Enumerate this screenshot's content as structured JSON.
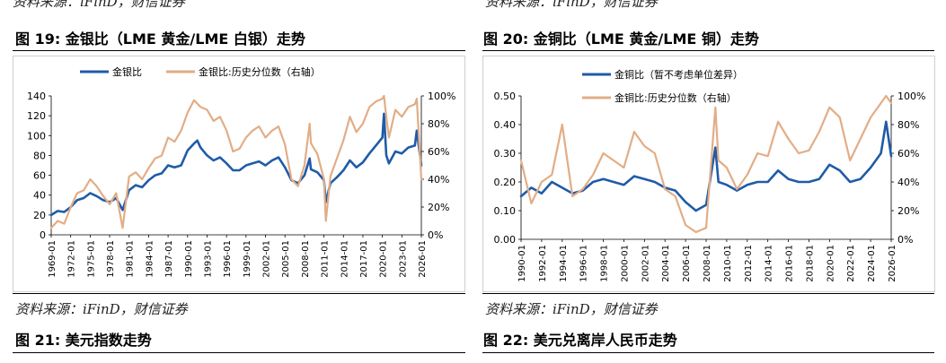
{
  "top_sources": {
    "left": "资料来源：iFinD，财信证券",
    "right": "资料来源：iFinD，财信证券"
  },
  "figures": {
    "fig19": "图 19:  金银比（LME 黄金/LME 白银）走势",
    "fig20": "图 20:  金铜比（LME 黄金/LME 铜）走势",
    "fig21": "图 21:  美元指数走势",
    "fig22": "图 22:  美元兑离岸人民币走势"
  },
  "bottom_sources": {
    "left": "资料来源：iFinD，财信证券",
    "right": "资料来源：iFinD，财信证券"
  },
  "colors": {
    "primary": "#1f5ba8",
    "secondary": "#e2ad86",
    "axis": "#000000"
  },
  "chart_data": [
    {
      "type": "line",
      "legend_placement": "top",
      "x_ticks": [
        "1969-01",
        "1972-01",
        "1975-01",
        "1978-01",
        "1981-01",
        "1984-01",
        "1987-01",
        "1990-01",
        "1993-01",
        "1996-01",
        "1999-01",
        "2002-01",
        "2005-01",
        "2008-01",
        "2011-01",
        "2014-01",
        "2017-01",
        "2020-01",
        "2023-01",
        "2026-01"
      ],
      "y_left": {
        "range": [
          0,
          140
        ],
        "ticks": [
          "0",
          "20",
          "40",
          "60",
          "80",
          "100",
          "120",
          "140"
        ]
      },
      "y_right": {
        "range": [
          0,
          100
        ],
        "ticks": [
          "0%",
          "20%",
          "40%",
          "60%",
          "80%",
          "100%"
        ]
      },
      "series": [
        {
          "name": "金银比",
          "axis": "left",
          "color": "#1f5ba8",
          "x": [
            1969.0,
            1970.0,
            1971.0,
            1972.0,
            1973.0,
            1974.0,
            1975.0,
            1976.0,
            1977.0,
            1978.0,
            1979.0,
            1980.0,
            1981.0,
            1982.0,
            1983.0,
            1984.0,
            1985.0,
            1986.0,
            1987.0,
            1988.0,
            1989.0,
            1990.0,
            1991.0,
            1991.5,
            1992.0,
            1993.0,
            1994.0,
            1995.0,
            1996.0,
            1997.0,
            1998.0,
            1999.0,
            2000.0,
            2001.0,
            2002.0,
            2003.0,
            2004.0,
            2005.0,
            2006.0,
            2007.0,
            2008.0,
            2008.8,
            2009.0,
            2010.0,
            2011.0,
            2011.3,
            2012.0,
            2013.0,
            2014.0,
            2015.0,
            2016.0,
            2017.0,
            2018.0,
            2019.0,
            2020.0,
            2020.25,
            2020.6,
            2021.0,
            2022.0,
            2023.0,
            2024.0,
            2025.0,
            2025.3,
            2026.0
          ],
          "y": [
            20,
            24,
            23,
            28,
            35,
            37,
            42,
            39,
            35,
            33,
            37,
            25,
            45,
            50,
            48,
            55,
            60,
            62,
            70,
            68,
            70,
            85,
            92,
            95,
            88,
            80,
            75,
            78,
            72,
            65,
            65,
            70,
            72,
            74,
            70,
            75,
            78,
            68,
            55,
            52,
            60,
            77,
            66,
            63,
            55,
            33,
            52,
            58,
            65,
            75,
            68,
            73,
            82,
            90,
            98,
            122,
            80,
            72,
            84,
            82,
            88,
            90,
            105,
            70
          ]
        },
        {
          "name": "金银比:历史分位数（右轴）",
          "axis": "right",
          "color": "#e2ad86",
          "x": [
            1969.0,
            1970.0,
            1971.0,
            1972.0,
            1973.0,
            1974.0,
            1975.0,
            1976.0,
            1977.0,
            1978.0,
            1979.0,
            1980.0,
            1981.0,
            1982.0,
            1983.0,
            1984.0,
            1985.0,
            1986.0,
            1987.0,
            1988.0,
            1989.0,
            1990.0,
            1991.0,
            1992.0,
            1993.0,
            1994.0,
            1995.0,
            1996.0,
            1997.0,
            1998.0,
            1999.0,
            2000.0,
            2001.0,
            2002.0,
            2003.0,
            2004.0,
            2005.0,
            2006.0,
            2007.0,
            2008.0,
            2008.8,
            2009.0,
            2010.0,
            2011.0,
            2011.3,
            2012.0,
            2013.0,
            2014.0,
            2015.0,
            2016.0,
            2017.0,
            2018.0,
            2019.0,
            2020.0,
            2020.25,
            2020.6,
            2021.0,
            2022.0,
            2023.0,
            2024.0,
            2025.0,
            2025.3,
            2026.0
          ],
          "y": [
            5,
            10,
            8,
            20,
            30,
            32,
            40,
            35,
            28,
            22,
            30,
            5,
            42,
            45,
            40,
            48,
            55,
            57,
            70,
            67,
            75,
            88,
            97,
            92,
            90,
            82,
            85,
            75,
            60,
            62,
            70,
            75,
            78,
            70,
            75,
            78,
            65,
            40,
            35,
            50,
            80,
            66,
            58,
            40,
            10,
            42,
            55,
            68,
            85,
            74,
            80,
            92,
            96,
            98,
            100,
            85,
            70,
            90,
            85,
            92,
            94,
            98,
            40
          ]
        }
      ]
    },
    {
      "type": "line",
      "legend_placement": "top-left",
      "x_ticks": [
        "1990-01",
        "1992-01",
        "1994-01",
        "1996-01",
        "1998-01",
        "2000-01",
        "2002-01",
        "2004-01",
        "2006-01",
        "2008-01",
        "2010-01",
        "2012-01",
        "2014-01",
        "2016-01",
        "2018-01",
        "2020-01",
        "2022-01",
        "2024-01",
        "2026-01"
      ],
      "y_left": {
        "range": [
          0.0,
          0.5
        ],
        "ticks": [
          "0.00",
          "0.10",
          "0.20",
          "0.30",
          "0.40",
          "0.50"
        ]
      },
      "y_right": {
        "range": [
          0,
          100
        ],
        "ticks": [
          "0%",
          "20%",
          "40%",
          "60%",
          "80%",
          "100%"
        ]
      },
      "series": [
        {
          "name": "金铜比（暂不考虑单位差异）",
          "axis": "left",
          "color": "#1f5ba8",
          "x": [
            1990.0,
            1991.0,
            1992.0,
            1993.0,
            1994.0,
            1995.0,
            1996.0,
            1997.0,
            1998.0,
            1999.0,
            2000.0,
            2001.0,
            2002.0,
            2003.0,
            2004.0,
            2005.0,
            2006.0,
            2007.0,
            2008.0,
            2008.9,
            2009.2,
            2010.0,
            2011.0,
            2012.0,
            2013.0,
            2014.0,
            2015.0,
            2016.0,
            2017.0,
            2018.0,
            2019.0,
            2020.0,
            2021.0,
            2022.0,
            2023.0,
            2024.0,
            2025.0,
            2025.5,
            2026.0
          ],
          "y": [
            0.15,
            0.18,
            0.16,
            0.2,
            0.18,
            0.16,
            0.17,
            0.2,
            0.21,
            0.2,
            0.19,
            0.22,
            0.21,
            0.2,
            0.18,
            0.17,
            0.13,
            0.1,
            0.12,
            0.32,
            0.2,
            0.19,
            0.17,
            0.19,
            0.2,
            0.2,
            0.24,
            0.21,
            0.2,
            0.2,
            0.21,
            0.26,
            0.24,
            0.2,
            0.21,
            0.25,
            0.3,
            0.41,
            0.29
          ]
        },
        {
          "name": "金铜比:历史分位数（右轴）",
          "axis": "right",
          "color": "#e2ad86",
          "x": [
            1990.0,
            1991.0,
            1992.0,
            1993.0,
            1994.0,
            1995.0,
            1996.0,
            1997.0,
            1998.0,
            1999.0,
            2000.0,
            2001.0,
            2002.0,
            2003.0,
            2004.0,
            2005.0,
            2006.0,
            2007.0,
            2008.0,
            2008.9,
            2009.2,
            2010.0,
            2011.0,
            2012.0,
            2013.0,
            2014.0,
            2015.0,
            2016.0,
            2017.0,
            2018.0,
            2019.0,
            2020.0,
            2021.0,
            2022.0,
            2023.0,
            2024.0,
            2025.0,
            2025.5,
            2026.0
          ],
          "y": [
            55,
            25,
            40,
            45,
            80,
            30,
            35,
            45,
            60,
            55,
            50,
            75,
            65,
            60,
            35,
            30,
            10,
            5,
            8,
            92,
            55,
            50,
            35,
            45,
            60,
            58,
            82,
            70,
            60,
            62,
            75,
            92,
            85,
            55,
            70,
            85,
            95,
            100,
            95
          ]
        }
      ]
    }
  ],
  "legend": {
    "c1_s1": "金银比",
    "c1_s2": "金银比:历史分位数（右轴）",
    "c2_s1": "金铜比（暂不考虑单位差异）",
    "c2_s2": "金铜比:历史分位数（右轴）"
  }
}
